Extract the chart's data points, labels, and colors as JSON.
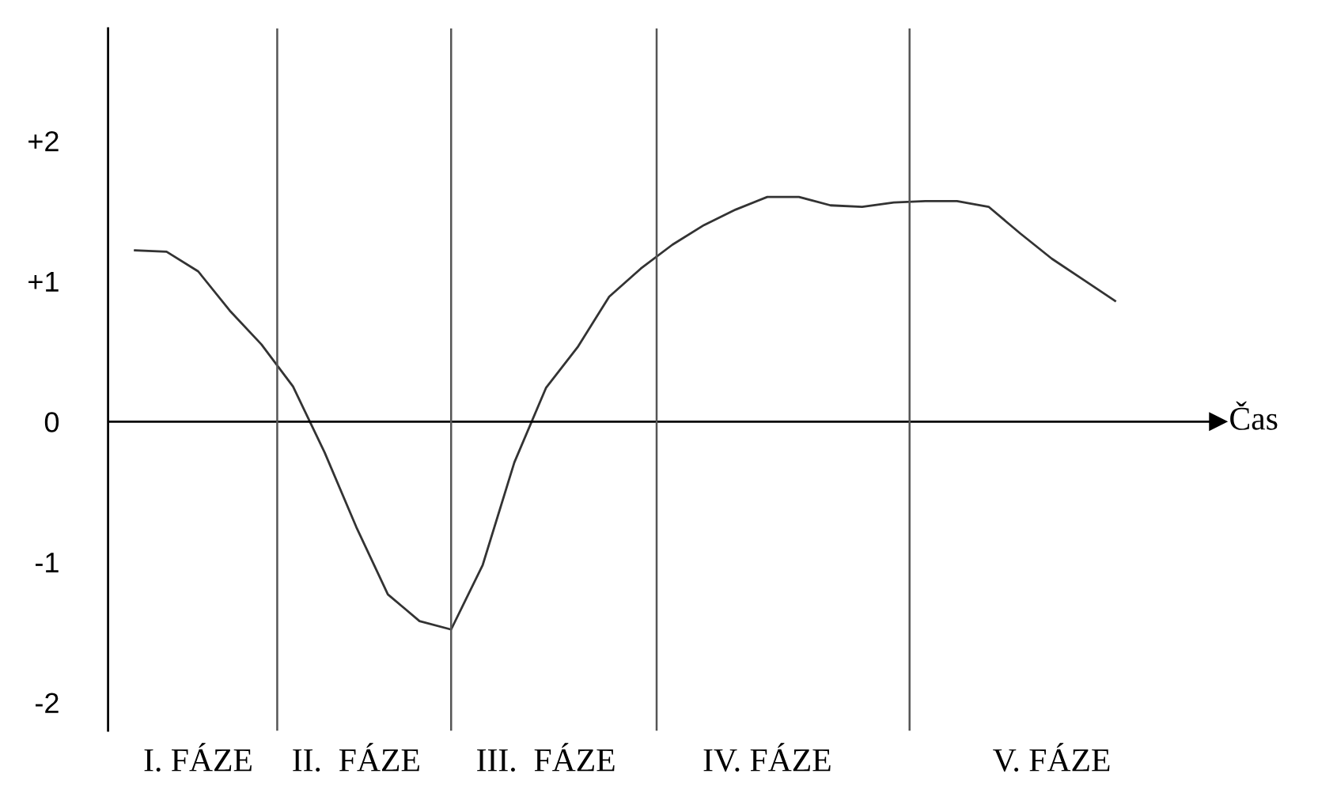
{
  "chart_data": {
    "type": "line",
    "xlabel": "Čas",
    "categories": [
      null,
      null,
      "I. FÁZE",
      null,
      null,
      null,
      null,
      "II.  FÁZE",
      null,
      null,
      null,
      null,
      null,
      "III.  FÁZE",
      null,
      null,
      null,
      null,
      null,
      null,
      "IV. FÁZE",
      null,
      null,
      null,
      null,
      null,
      null,
      null,
      null,
      "V. FÁZE",
      null,
      null
    ],
    "series": [
      {
        "color": "#333333",
        "values": [
          1.22,
          1.21,
          1.07,
          0.79,
          0.55,
          0.25,
          -0.22,
          -0.75,
          -1.23,
          -1.42,
          -1.48,
          -1.02,
          -0.29,
          0.24,
          0.53,
          0.89,
          1.09,
          1.26,
          1.4,
          1.51,
          1.6,
          1.6,
          1.54,
          1.53,
          1.56,
          1.57,
          1.57,
          1.53,
          1.34,
          1.16,
          1.01,
          0.86
        ]
      }
    ],
    "ylim": [
      -2.2,
      2.8
    ],
    "yticks": [
      {
        "value": 2,
        "label": "+2"
      },
      {
        "value": 1,
        "label": "+1"
      },
      {
        "value": 0,
        "label": "0"
      },
      {
        "value": -1,
        "label": "-1"
      },
      {
        "value": -2,
        "label": "-2"
      }
    ],
    "ref_lines": [
      {
        "axis": "y",
        "value": 0,
        "color": "#000000"
      }
    ],
    "grid": "x",
    "legend": false,
    "marker": "none",
    "line_style": "solid"
  }
}
